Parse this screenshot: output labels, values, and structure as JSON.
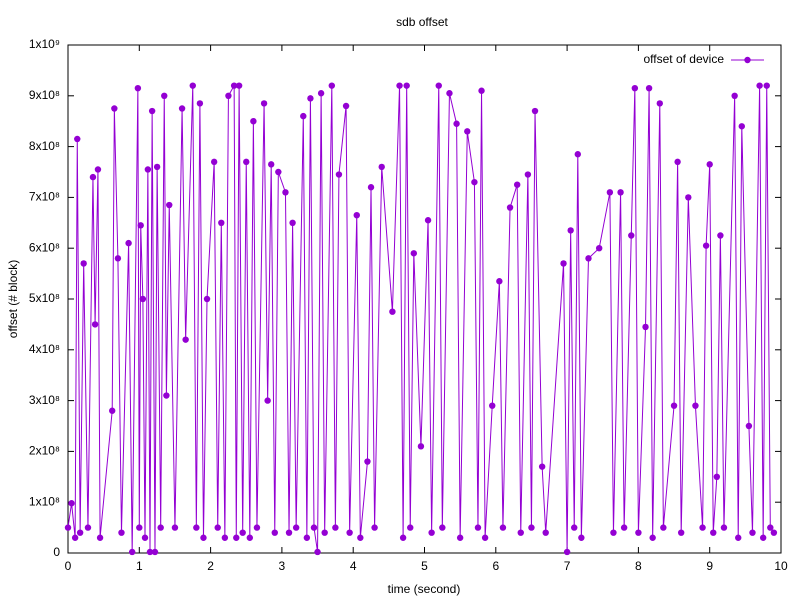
{
  "chart_data": {
    "type": "line",
    "title": "sdb offset",
    "xlabel": "time (second)",
    "ylabel": "offset (# block)",
    "legend": "top-right",
    "grid": false,
    "xlim": [
      0,
      10
    ],
    "xticks": [
      0,
      1,
      2,
      3,
      4,
      5,
      6,
      7,
      8,
      9,
      10
    ],
    "ylim": [
      0,
      1000000000
    ],
    "yticks": [
      0,
      {
        "value": 100000000,
        "label": "1x10⁸"
      },
      {
        "value": 200000000,
        "label": "2x10⁸"
      },
      {
        "value": 300000000,
        "label": "3x10⁸"
      },
      {
        "value": 400000000,
        "label": "4x10⁸"
      },
      {
        "value": 500000000,
        "label": "5x10⁸"
      },
      {
        "value": 600000000,
        "label": "6x10⁸"
      },
      {
        "value": 700000000,
        "label": "7x10⁸"
      },
      {
        "value": 800000000,
        "label": "8x10⁸"
      },
      {
        "value": 900000000,
        "label": "9x10⁸"
      },
      {
        "value": 1000000000,
        "label": "1x10⁹"
      }
    ],
    "series": [
      {
        "name": "offset of device",
        "color": "#9400d3",
        "x": [
          0.0,
          0.05,
          0.1,
          0.13,
          0.17,
          0.22,
          0.28,
          0.35,
          0.38,
          0.42,
          0.45,
          0.62,
          0.65,
          0.7,
          0.75,
          0.85,
          0.9,
          0.98,
          1.0,
          1.02,
          1.05,
          1.08,
          1.12,
          1.15,
          1.18,
          1.22,
          1.25,
          1.3,
          1.35,
          1.38,
          1.42,
          1.5,
          1.6,
          1.65,
          1.75,
          1.8,
          1.85,
          1.9,
          1.95,
          2.05,
          2.1,
          2.15,
          2.2,
          2.25,
          2.33,
          2.36,
          2.4,
          2.45,
          2.5,
          2.55,
          2.6,
          2.65,
          2.75,
          2.8,
          2.85,
          2.9,
          2.95,
          3.05,
          3.1,
          3.15,
          3.2,
          3.3,
          3.35,
          3.4,
          3.45,
          3.5,
          3.55,
          3.6,
          3.7,
          3.75,
          3.8,
          3.9,
          3.95,
          4.05,
          4.1,
          4.2,
          4.25,
          4.3,
          4.4,
          4.55,
          4.65,
          4.7,
          4.75,
          4.8,
          4.85,
          4.95,
          5.05,
          5.1,
          5.2,
          5.25,
          5.35,
          5.45,
          5.5,
          5.6,
          5.7,
          5.75,
          5.8,
          5.85,
          5.95,
          6.05,
          6.1,
          6.2,
          6.3,
          6.35,
          6.45,
          6.5,
          6.55,
          6.65,
          6.7,
          6.95,
          7.0,
          7.05,
          7.1,
          7.15,
          7.2,
          7.3,
          7.45,
          7.6,
          7.65,
          7.75,
          7.8,
          7.9,
          7.95,
          8.0,
          8.1,
          8.15,
          8.2,
          8.3,
          8.35,
          8.5,
          8.55,
          8.6,
          8.7,
          8.8,
          8.9,
          8.95,
          9.0,
          9.05,
          9.1,
          9.15,
          9.2,
          9.35,
          9.4,
          9.45,
          9.55,
          9.6,
          9.7,
          9.75,
          9.8,
          9.85,
          9.9
        ],
        "values": [
          50000000.0,
          98000000.0,
          30000000.0,
          815000000.0,
          40000000.0,
          570000000.0,
          50000000.0,
          740000000.0,
          450000000.0,
          755000000.0,
          30000000.0,
          280000000.0,
          875000000.0,
          580000000.0,
          40000000.0,
          610000000.0,
          2000000.0,
          915000000.0,
          50000000.0,
          645000000.0,
          500000000.0,
          30000000.0,
          755000000.0,
          2000000.0,
          870000000.0,
          2000000.0,
          760000000.0,
          50000000.0,
          900000000.0,
          310000000.0,
          685000000.0,
          50000000.0,
          875000000.0,
          420000000.0,
          920000000.0,
          50000000.0,
          885000000.0,
          30000000.0,
          500000000.0,
          770000000.0,
          50000000.0,
          650000000.0,
          30000000.0,
          900000000.0,
          920000000.0,
          30000000.0,
          920000000.0,
          40000000.0,
          770000000.0,
          30000000.0,
          850000000.0,
          50000000.0,
          885000000.0,
          300000000.0,
          765000000.0,
          40000000.0,
          750000000.0,
          710000000.0,
          40000000.0,
          650000000.0,
          50000000.0,
          860000000.0,
          30000000.0,
          895000000.0,
          50000000.0,
          2000000.0,
          905000000.0,
          40000000.0,
          920000000.0,
          50000000.0,
          745000000.0,
          880000000.0,
          40000000.0,
          665000000.0,
          30000000.0,
          180000000.0,
          720000000.0,
          50000000.0,
          760000000.0,
          475000000.0,
          920000000.0,
          30000000.0,
          920000000.0,
          50000000.0,
          590000000.0,
          210000000.0,
          655000000.0,
          40000000.0,
          920000000.0,
          50000000.0,
          905000000.0,
          845000000.0,
          30000000.0,
          830000000.0,
          730000000.0,
          50000000.0,
          910000000.0,
          30000000.0,
          290000000.0,
          535000000.0,
          50000000.0,
          680000000.0,
          725000000.0,
          40000000.0,
          745000000.0,
          50000000.0,
          870000000.0,
          170000000.0,
          40000000.0,
          570000000.0,
          2000000.0,
          635000000.0,
          50000000.0,
          785000000.0,
          30000000.0,
          580000000.0,
          600000000.0,
          710000000.0,
          40000000.0,
          710000000.0,
          50000000.0,
          625000000.0,
          915000000.0,
          40000000.0,
          445000000.0,
          915000000.0,
          30000000.0,
          885000000.0,
          50000000.0,
          290000000.0,
          770000000.0,
          40000000.0,
          700000000.0,
          290000000.0,
          50000000.0,
          605000000.0,
          765000000.0,
          40000000.0,
          150000000.0,
          625000000.0,
          50000000.0,
          900000000.0,
          30000000.0,
          840000000.0,
          250000000.0,
          40000000.0,
          920000000.0,
          30000000.0,
          920000000.0,
          50000000.0,
          40000000.0
        ]
      }
    ]
  }
}
